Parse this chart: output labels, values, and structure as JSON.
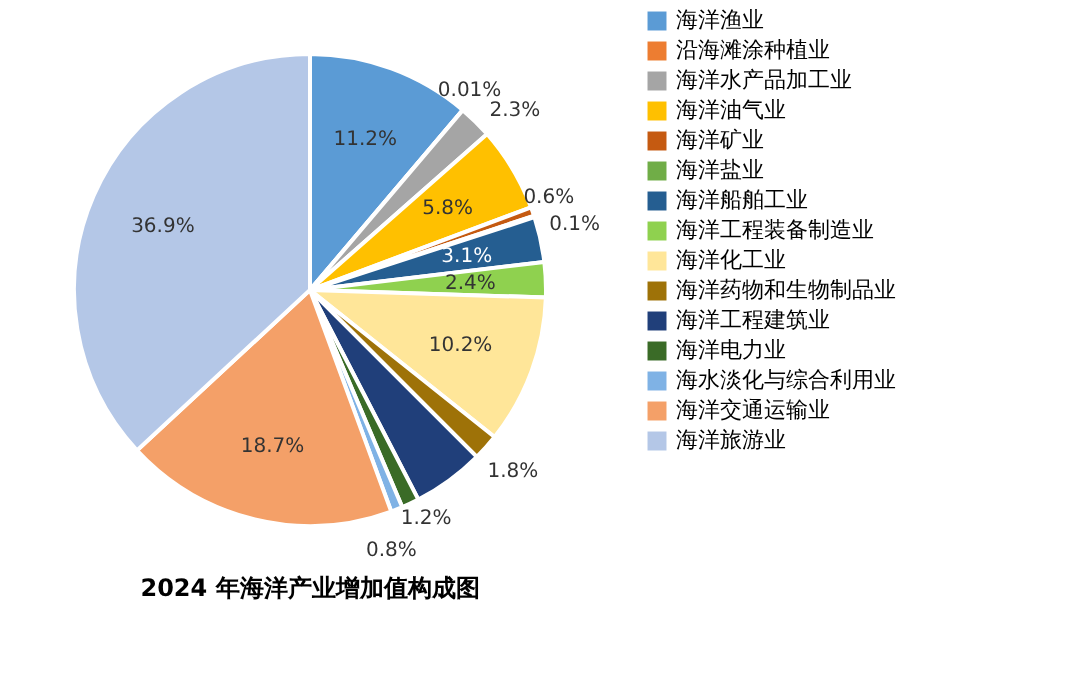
{
  "chart_data": {
    "type": "pie",
    "title": "2024 年海洋产业增加值构成图",
    "categories": [
      "海洋渔业",
      "沿海滩涂种植业",
      "海洋水产品加工业",
      "海洋油气业",
      "海洋矿业",
      "海洋盐业",
      "海洋船舶工业",
      "海洋工程装备制造业",
      "海洋化工业",
      "海洋药物和生物制品业",
      "海洋工程建筑业",
      "海洋电力业",
      "海水淡化与综合利用业",
      "海洋交通运输业",
      "海洋旅游业"
    ],
    "values": [
      11.2,
      0.01,
      2.3,
      5.8,
      0.6,
      0.1,
      3.1,
      2.4,
      10.2,
      1.8,
      4.9,
      1.2,
      0.8,
      18.7,
      36.9
    ],
    "value_labels": [
      "11.2%",
      "0.01%",
      "2.3%",
      "5.8%",
      "0.6%",
      "0.1%",
      "3.1%",
      "2.4%",
      "10.2%",
      "1.8%",
      null,
      "1.2%",
      "0.8%",
      "18.7%",
      "36.9%"
    ],
    "colors": [
      "#5b9bd5",
      "#ed7d31",
      "#a5a5a5",
      "#ffc000",
      "#c55a11",
      "#70ad47",
      "#255e91",
      "#8fd14f",
      "#ffe699",
      "#9e7208",
      "#203f7a",
      "#3a6b27",
      "#7fb2e5",
      "#f4a068",
      "#b4c7e7"
    ],
    "legend": "right"
  }
}
